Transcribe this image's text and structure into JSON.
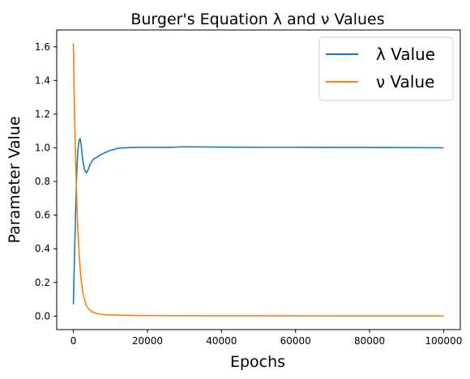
{
  "chart_data": {
    "type": "line",
    "title": "Burger's Equation λ and ν Values",
    "xlabel": "Epochs",
    "ylabel": "Parameter Value",
    "xlim": [
      -4500,
      104500
    ],
    "ylim": [
      -0.08,
      1.7
    ],
    "xticks": [
      0,
      20000,
      40000,
      60000,
      80000,
      100000
    ],
    "xtick_labels": [
      "0",
      "20000",
      "40000",
      "60000",
      "80000",
      "100000"
    ],
    "yticks": [
      0.0,
      0.2,
      0.4,
      0.6,
      0.8,
      1.0,
      1.2,
      1.4,
      1.6
    ],
    "ytick_labels": [
      "0.0",
      "0.2",
      "0.4",
      "0.6",
      "0.8",
      "1.0",
      "1.2",
      "1.4",
      "1.6"
    ],
    "grid": false,
    "legend": "top-right",
    "series": [
      {
        "name": "λ Value",
        "color": "#1f77b4",
        "x": [
          0,
          300,
          600,
          900,
          1200,
          1500,
          1800,
          2100,
          2500,
          3000,
          3500,
          4000,
          4500,
          5000,
          5500,
          6000,
          6500,
          7000,
          8000,
          9000,
          10000,
          11000,
          12000,
          14000,
          16000,
          20000,
          25000,
          30000,
          35000,
          40000,
          50000,
          60000,
          70000,
          80000,
          90000,
          100000
        ],
        "y": [
          0.07,
          0.35,
          0.62,
          0.85,
          0.98,
          1.04,
          1.055,
          1.02,
          0.93,
          0.87,
          0.85,
          0.87,
          0.9,
          0.92,
          0.935,
          0.94,
          0.945,
          0.955,
          0.965,
          0.975,
          0.985,
          0.99,
          0.997,
          1.0,
          1.002,
          1.003,
          1.002,
          1.006,
          1.005,
          1.004,
          1.003,
          1.003,
          1.002,
          1.002,
          1.001,
          1.0
        ]
      },
      {
        "name": "ν Value",
        "color": "#ff7f0e",
        "x": [
          0,
          200,
          400,
          600,
          800,
          1000,
          1200,
          1400,
          1600,
          1800,
          2000,
          2400,
          2800,
          3200,
          3600,
          4000,
          5000,
          6000,
          7000,
          8000,
          10000,
          13000,
          17000,
          25000,
          35000,
          50000,
          70000,
          100000
        ],
        "y": [
          1.62,
          1.35,
          1.12,
          0.93,
          0.77,
          0.63,
          0.52,
          0.43,
          0.35,
          0.29,
          0.24,
          0.165,
          0.115,
          0.082,
          0.06,
          0.045,
          0.026,
          0.017,
          0.012,
          0.009,
          0.007,
          0.005,
          0.004,
          0.003,
          0.002,
          0.002,
          0.001,
          0.001
        ]
      }
    ]
  }
}
